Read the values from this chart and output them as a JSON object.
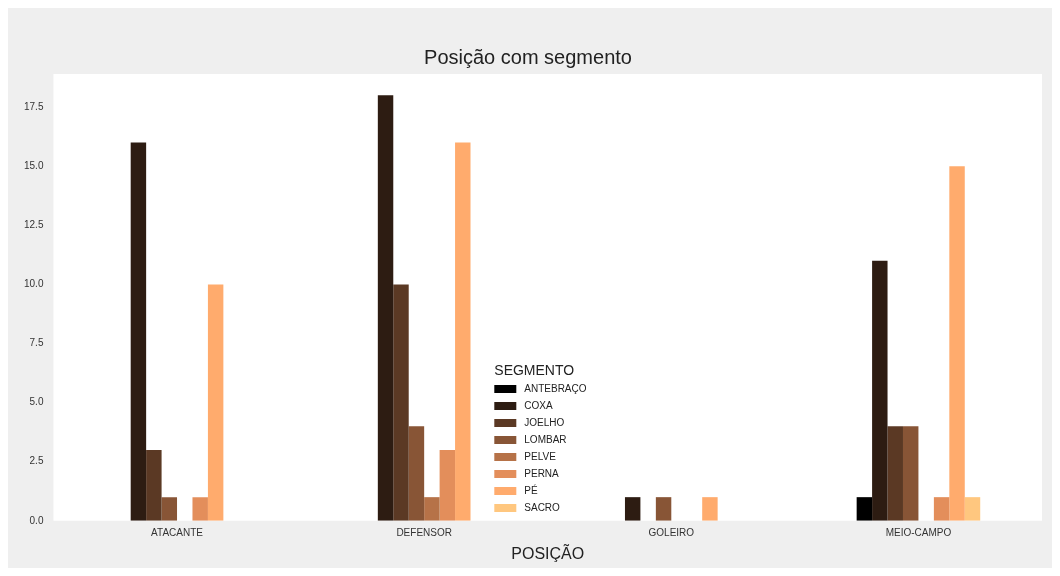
{
  "chart_data": {
    "type": "bar",
    "title": "Posição com segmento",
    "xlabel": "POSIÇÃO",
    "legend_title": "SEGMENTO",
    "categories": [
      "ATACANTE",
      "DEFENSOR",
      "GOLEIRO",
      "MEIO-CAMPO"
    ],
    "series": [
      {
        "name": "ANTEBRAÇO",
        "color": "#000000",
        "values": [
          null,
          null,
          null,
          1
        ]
      },
      {
        "name": "COXA",
        "color": "#2d1c12",
        "values": [
          16,
          18,
          1,
          11
        ]
      },
      {
        "name": "JOELHO",
        "color": "#5b3924",
        "values": [
          3,
          10,
          null,
          4
        ]
      },
      {
        "name": "LOMBAR",
        "color": "#885536",
        "values": [
          1,
          4,
          1,
          4
        ]
      },
      {
        "name": "PELVE",
        "color": "#b67248",
        "values": [
          null,
          1,
          null,
          null
        ]
      },
      {
        "name": "PERNA",
        "color": "#e38e5b",
        "values": [
          1,
          3,
          null,
          1
        ]
      },
      {
        "name": "PÉ",
        "color": "#ffab6d",
        "values": [
          10,
          16,
          1,
          15
        ]
      },
      {
        "name": "SACRO",
        "color": "#ffc77f",
        "values": [
          null,
          null,
          null,
          1
        ]
      }
    ],
    "ylim": [
      0,
      18.9
    ],
    "yticks": [
      {
        "value": 0,
        "label": "0.0"
      },
      {
        "value": 2.5,
        "label": "2.5"
      },
      {
        "value": 5,
        "label": "5.0"
      },
      {
        "value": 7.5,
        "label": "7.5"
      },
      {
        "value": 10,
        "label": "10.0"
      },
      {
        "value": 12.5,
        "label": "12.5"
      },
      {
        "value": 15,
        "label": "15.0"
      },
      {
        "value": 17.5,
        "label": "17.5"
      }
    ],
    "grid": false,
    "legend": "bottom"
  }
}
